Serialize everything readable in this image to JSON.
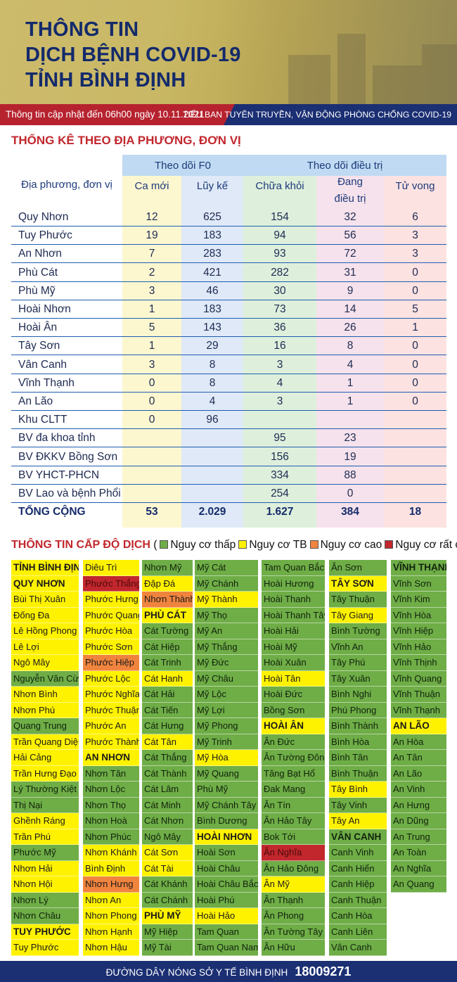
{
  "header": {
    "title_lines": [
      "THÔNG TIN",
      "DỊCH BỆNH COVID-19",
      "TỈNH BÌNH ĐỊNH"
    ],
    "update_text": "Thông tin cập nhật đến 06h00 ngày 10.11.2021",
    "org_text": "TIỂU BAN TUYÊN TRUYỀN, VẬN ĐỘNG PHÒNG CHỐNG COVID-19"
  },
  "stats": {
    "section_title": "THỐNG KÊ THEO ĐỊA PHƯƠNG, ĐƠN VỊ",
    "headers": {
      "location": "Địa phương, đơn vị",
      "group_f0": "Theo dõi F0",
      "group_treatment": "Theo dõi điều trị",
      "new_cases": "Ca mới",
      "cumulative": "Lũy kế",
      "recovered": "Chữa khỏi",
      "treating_1": "Đang",
      "treating_2": "điều trị",
      "deaths": "Tử vong"
    },
    "colors": {
      "new": "#fdf7d0",
      "cum": "#dfe9f7",
      "rec": "#def0dc",
      "treat": "#f6e2ec",
      "death": "#fde2e2",
      "header_blue": "#bfdaf2"
    },
    "rows": [
      {
        "name": "Quy Nhơn",
        "new": "12",
        "cum": "625",
        "rec": "154",
        "treat": "32",
        "death": "6"
      },
      {
        "name": "Tuy Phước",
        "new": "19",
        "cum": "183",
        "rec": "94",
        "treat": "56",
        "death": "3"
      },
      {
        "name": "An Nhơn",
        "new": "7",
        "cum": "283",
        "rec": "93",
        "treat": "72",
        "death": "3"
      },
      {
        "name": "Phù Cát",
        "new": "2",
        "cum": "421",
        "rec": "282",
        "treat": "31",
        "death": "0"
      },
      {
        "name": "Phù Mỹ",
        "new": "3",
        "cum": "46",
        "rec": "30",
        "treat": "9",
        "death": "0"
      },
      {
        "name": "Hoài Nhơn",
        "new": "1",
        "cum": "183",
        "rec": "73",
        "treat": "14",
        "death": "5"
      },
      {
        "name": "Hoài Ân",
        "new": "5",
        "cum": "143",
        "rec": "36",
        "treat": "26",
        "death": "1"
      },
      {
        "name": "Tây Sơn",
        "new": "1",
        "cum": "29",
        "rec": "16",
        "treat": "8",
        "death": "0"
      },
      {
        "name": "Vân Canh",
        "new": "3",
        "cum": "8",
        "rec": "3",
        "treat": "4",
        "death": "0"
      },
      {
        "name": "Vĩnh Thạnh",
        "new": "0",
        "cum": "8",
        "rec": "4",
        "treat": "1",
        "death": "0"
      },
      {
        "name": "An Lão",
        "new": "0",
        "cum": "4",
        "rec": "3",
        "treat": "1",
        "death": "0"
      },
      {
        "name": "Khu  CLTT",
        "new": "0",
        "cum": "96",
        "rec": "",
        "treat": "",
        "death": ""
      },
      {
        "name": "BV đa khoa tỉnh",
        "new": "",
        "cum": "",
        "rec": "95",
        "treat": "23",
        "death": ""
      },
      {
        "name": "BV ĐKKV Bồng Sơn",
        "new": "",
        "cum": "",
        "rec": "156",
        "treat": "19",
        "death": ""
      },
      {
        "name": "BV YHCT-PHCN",
        "new": "",
        "cum": "",
        "rec": "334",
        "treat": "88",
        "death": ""
      },
      {
        "name": "BV Lao và bệnh Phổi",
        "new": "",
        "cum": "",
        "rec": "254",
        "treat": "0",
        "death": ""
      }
    ],
    "total": {
      "name": "TỔNG CỘNG",
      "new": "53",
      "cum": "2.029",
      "rec": "1.627",
      "treat": "384",
      "death": "18"
    }
  },
  "risk": {
    "section_title": "THÔNG TIN CẤP ĐỘ DỊCH",
    "legend": [
      {
        "label": "Nguy cơ thấp",
        "color": "#6fad47"
      },
      {
        "label": "Nguy cơ TB",
        "color": "#fff200"
      },
      {
        "label": "Nguy cơ cao",
        "color": "#f0843e"
      },
      {
        "label": "Nguy cơ rất cao",
        "color": "#c1272d"
      }
    ],
    "columns": [
      [
        {
          "t": "TỈNH BÌNH ĐỊNH",
          "c": "y",
          "b": true
        },
        {
          "t": "QUY NHƠN",
          "c": "y",
          "b": true
        },
        {
          "t": "Bùi Thị Xuân",
          "c": "y"
        },
        {
          "t": "Đống Đa",
          "c": "y"
        },
        {
          "t": "Lê Hồng Phong",
          "c": "y"
        },
        {
          "t": "Lê Lợi",
          "c": "y"
        },
        {
          "t": "Ngô Mây",
          "c": "y"
        },
        {
          "t": "Nguyễn Văn Cừ",
          "c": "g"
        },
        {
          "t": "Nhơn Bình",
          "c": "y"
        },
        {
          "t": "Nhơn Phú",
          "c": "y"
        },
        {
          "t": "Quang Trung",
          "c": "g"
        },
        {
          "t": "Trần Quang Diệu",
          "c": "y"
        },
        {
          "t": "Hải Cảng",
          "c": "y"
        },
        {
          "t": "Trần Hưng Đạo",
          "c": "y"
        },
        {
          "t": "Lý Thường Kiệt",
          "c": "g"
        },
        {
          "t": "Thị Nại",
          "c": "g"
        },
        {
          "t": "Ghềnh Ráng",
          "c": "y"
        },
        {
          "t": "Trần Phú",
          "c": "y"
        },
        {
          "t": "Phước Mỹ",
          "c": "g"
        },
        {
          "t": "Nhơn Hải",
          "c": "y"
        },
        {
          "t": "Nhơn Hội",
          "c": "y"
        },
        {
          "t": "Nhơn Lý",
          "c": "g"
        },
        {
          "t": "Nhơn Châu",
          "c": "g"
        },
        {
          "t": "TUY PHƯỚC",
          "c": "y",
          "b": true
        },
        {
          "t": "Tuy Phước",
          "c": "y"
        }
      ],
      [
        {
          "t": "Diêu Trì",
          "c": "y"
        },
        {
          "t": "Phước Thắng",
          "c": "r"
        },
        {
          "t": "Phước Hưng",
          "c": "y"
        },
        {
          "t": "Phước Quang",
          "c": "y"
        },
        {
          "t": "Phước Hòa",
          "c": "y"
        },
        {
          "t": "Phước Sơn",
          "c": "y"
        },
        {
          "t": "Phước Hiệp",
          "c": "o"
        },
        {
          "t": "Phước Lộc",
          "c": "y"
        },
        {
          "t": "Phước Nghĩa",
          "c": "y"
        },
        {
          "t": "Phước Thuận",
          "c": "y"
        },
        {
          "t": "Phước An",
          "c": "y"
        },
        {
          "t": "Phước Thành",
          "c": "y"
        },
        {
          "t": "AN NHƠN",
          "c": "y",
          "b": true
        },
        {
          "t": "Nhơn Tân",
          "c": "g"
        },
        {
          "t": "Nhơn Lộc",
          "c": "g"
        },
        {
          "t": "Nhơn Thọ",
          "c": "g"
        },
        {
          "t": "Nhơn Hoà",
          "c": "g"
        },
        {
          "t": "Nhơn Phúc",
          "c": "g"
        },
        {
          "t": "Nhơn Khánh",
          "c": "y"
        },
        {
          "t": "Bình Định",
          "c": "y"
        },
        {
          "t": "Nhơn Hưng",
          "c": "o"
        },
        {
          "t": "Nhơn An",
          "c": "y"
        },
        {
          "t": "Nhơn Phong",
          "c": "y"
        },
        {
          "t": "Nhơn Hạnh",
          "c": "y"
        },
        {
          "t": "Nhơn Hậu",
          "c": "y"
        }
      ],
      [
        {
          "t": "Nhơn Mỹ",
          "c": "g"
        },
        {
          "t": "Đập Đá",
          "c": "y"
        },
        {
          "t": "Nhơn Thành",
          "c": "o"
        },
        {
          "t": "PHÙ CÁT",
          "c": "y",
          "b": true
        },
        {
          "t": "Cát Tường",
          "c": "g"
        },
        {
          "t": "Cát Hiệp",
          "c": "g"
        },
        {
          "t": "Cát Trinh",
          "c": "g"
        },
        {
          "t": "Cát Hanh",
          "c": "y"
        },
        {
          "t": "Cát Hải",
          "c": "g"
        },
        {
          "t": "Cát Tiến",
          "c": "g"
        },
        {
          "t": "Cát Hưng",
          "c": "g"
        },
        {
          "t": "Cát Tân",
          "c": "y"
        },
        {
          "t": "Cát Thắng",
          "c": "g"
        },
        {
          "t": "Cát Thành",
          "c": "g"
        },
        {
          "t": "Cát Lâm",
          "c": "g"
        },
        {
          "t": "Cát Minh",
          "c": "g"
        },
        {
          "t": "Cát Nhơn",
          "c": "g"
        },
        {
          "t": "Ngô Mây",
          "c": "g"
        },
        {
          "t": "Cát Sơn",
          "c": "y"
        },
        {
          "t": "Cát Tài",
          "c": "y"
        },
        {
          "t": "Cát Khánh",
          "c": "g"
        },
        {
          "t": "Cát Chánh",
          "c": "g"
        },
        {
          "t": "PHÙ MỸ",
          "c": "y",
          "b": true
        },
        {
          "t": "Mỹ Hiệp",
          "c": "g"
        },
        {
          "t": "Mỹ Tài",
          "c": "g"
        }
      ],
      [
        {
          "t": "Mỹ Cát",
          "c": "g"
        },
        {
          "t": "Mỹ Chánh",
          "c": "g"
        },
        {
          "t": "Mỹ Thành",
          "c": "y"
        },
        {
          "t": "Mỹ Thọ",
          "c": "g"
        },
        {
          "t": "Mỹ An",
          "c": "g"
        },
        {
          "t": "Mỹ Thắng",
          "c": "g"
        },
        {
          "t": "Mỹ Đức",
          "c": "g"
        },
        {
          "t": "Mỹ Châu",
          "c": "g"
        },
        {
          "t": "Mỹ Lộc",
          "c": "g"
        },
        {
          "t": "Mỹ Lợi",
          "c": "g"
        },
        {
          "t": "Mỹ Phong",
          "c": "g"
        },
        {
          "t": "Mỹ Trinh",
          "c": "g"
        },
        {
          "t": "Mỹ Hòa",
          "c": "y"
        },
        {
          "t": "Mỹ Quang",
          "c": "g"
        },
        {
          "t": "Phù Mỹ",
          "c": "g"
        },
        {
          "t": "Mỹ Chánh Tây",
          "c": "g"
        },
        {
          "t": "Bình Dương",
          "c": "g"
        },
        {
          "t": "HOÀI NHƠN",
          "c": "y",
          "b": true
        },
        {
          "t": "Hoài Sơn",
          "c": "g"
        },
        {
          "t": "Hoài Châu",
          "c": "g"
        },
        {
          "t": "Hoài Châu Bắc",
          "c": "g"
        },
        {
          "t": "Hoài Phú",
          "c": "g"
        },
        {
          "t": "Hoài Hảo",
          "c": "y"
        },
        {
          "t": "Tam Quan",
          "c": "g"
        },
        {
          "t": "Tam Quan Nam",
          "c": "g"
        }
      ],
      [
        {
          "t": "Tam Quan Bắc",
          "c": "g"
        },
        {
          "t": "Hoài Hương",
          "c": "g"
        },
        {
          "t": "Hoài Thanh",
          "c": "g"
        },
        {
          "t": "Hoài Thanh Tây",
          "c": "g"
        },
        {
          "t": "Hoài Hải",
          "c": "g"
        },
        {
          "t": "Hoài Mỹ",
          "c": "g"
        },
        {
          "t": "Hoài Xuân",
          "c": "g"
        },
        {
          "t": "Hoài Tân",
          "c": "y"
        },
        {
          "t": "Hoài Đức",
          "c": "g"
        },
        {
          "t": "Bồng Sơn",
          "c": "g"
        },
        {
          "t": "HOÀI ÂN",
          "c": "y",
          "b": true
        },
        {
          "t": "Ân Đức",
          "c": "g"
        },
        {
          "t": "Ân Tường Đông",
          "c": "g"
        },
        {
          "t": "Tăng Bạt Hổ",
          "c": "g"
        },
        {
          "t": "Đak Mang",
          "c": "g"
        },
        {
          "t": "Ân Tín",
          "c": "g"
        },
        {
          "t": "Ân Hảo Tây",
          "c": "g"
        },
        {
          "t": "Bok Tới",
          "c": "g"
        },
        {
          "t": "Ân Nghĩa",
          "c": "r"
        },
        {
          "t": "Ân Hảo Đông",
          "c": "g"
        },
        {
          "t": "Ân Mỹ",
          "c": "y"
        },
        {
          "t": "Ân Thạnh",
          "c": "g"
        },
        {
          "t": "Ân Phong",
          "c": "g"
        },
        {
          "t": "Ân Tường Tây",
          "c": "g"
        },
        {
          "t": "Ân Hữu",
          "c": "g"
        }
      ],
      [
        {
          "t": "Ân Sơn",
          "c": "g"
        },
        {
          "t": "TÂY SƠN",
          "c": "y",
          "b": true
        },
        {
          "t": "Tây Thuận",
          "c": "g"
        },
        {
          "t": "Tây Giang",
          "c": "y"
        },
        {
          "t": "Bình Tường",
          "c": "g"
        },
        {
          "t": "Vĩnh An",
          "c": "g"
        },
        {
          "t": "Tây Phú",
          "c": "g"
        },
        {
          "t": "Tây Xuân",
          "c": "g"
        },
        {
          "t": "Bình Nghi",
          "c": "g"
        },
        {
          "t": "Phú Phong",
          "c": "g"
        },
        {
          "t": "Bình Thành",
          "c": "g"
        },
        {
          "t": "Bình Hòa",
          "c": "g"
        },
        {
          "t": "Bình Tân",
          "c": "g"
        },
        {
          "t": "Bình Thuận",
          "c": "g"
        },
        {
          "t": "Tây Bình",
          "c": "y"
        },
        {
          "t": "Tây Vinh",
          "c": "g"
        },
        {
          "t": "Tây An",
          "c": "y"
        },
        {
          "t": "VÂN CANH",
          "c": "g",
          "b": true
        },
        {
          "t": "Canh Vinh",
          "c": "g"
        },
        {
          "t": "Canh Hiển",
          "c": "g"
        },
        {
          "t": "Canh Hiệp",
          "c": "g"
        },
        {
          "t": "Canh Thuận",
          "c": "g"
        },
        {
          "t": "Canh Hòa",
          "c": "g"
        },
        {
          "t": "Canh Liên",
          "c": "g"
        },
        {
          "t": "Vân Canh",
          "c": "g"
        }
      ],
      [
        {
          "t": "VĨNH THẠNH",
          "c": "g",
          "b": true
        },
        {
          "t": "Vĩnh Sơn",
          "c": "g"
        },
        {
          "t": "Vĩnh Kim",
          "c": "g"
        },
        {
          "t": "Vĩnh Hòa",
          "c": "g"
        },
        {
          "t": "Vĩnh Hiệp",
          "c": "g"
        },
        {
          "t": "Vĩnh Hảo",
          "c": "g"
        },
        {
          "t": "Vĩnh Thịnh",
          "c": "g"
        },
        {
          "t": "Vĩnh Quang",
          "c": "g"
        },
        {
          "t": "Vĩnh Thuận",
          "c": "g"
        },
        {
          "t": "Vĩnh Thạnh",
          "c": "g"
        },
        {
          "t": "AN LÃO",
          "c": "y",
          "b": true
        },
        {
          "t": "An Hòa",
          "c": "g"
        },
        {
          "t": "An Tân",
          "c": "g"
        },
        {
          "t": "An Lão",
          "c": "g"
        },
        {
          "t": "An Vinh",
          "c": "g"
        },
        {
          "t": "An Hưng",
          "c": "g"
        },
        {
          "t": "An Dũng",
          "c": "g"
        },
        {
          "t": "An Trung",
          "c": "g"
        },
        {
          "t": "An Toàn",
          "c": "g"
        },
        {
          "t": "An Nghĩa",
          "c": "g"
        },
        {
          "t": "An Quang",
          "c": "g"
        }
      ]
    ]
  },
  "footer": {
    "hotline_label": "ĐƯỜNG DÂY NÓNG SỞ Y TẾ BÌNH ĐỊNH",
    "hotline_number": "18009271"
  }
}
